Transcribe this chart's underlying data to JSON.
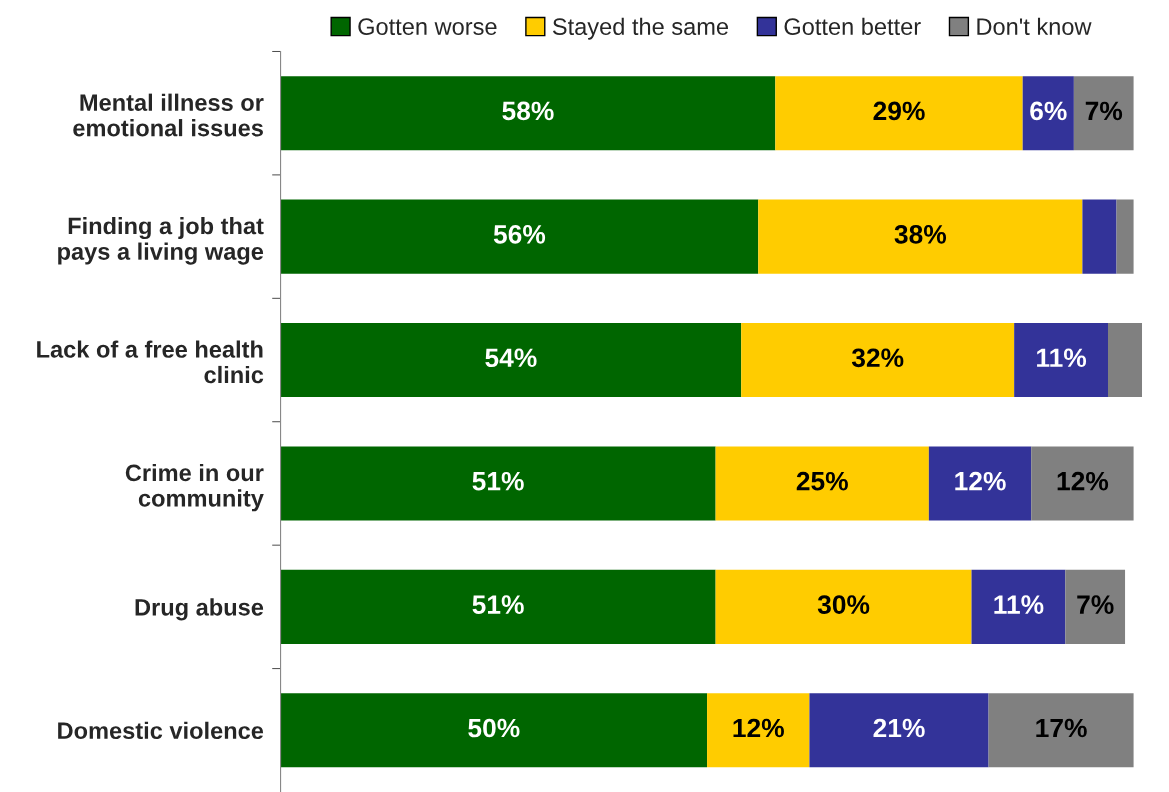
{
  "chart_data": {
    "type": "bar",
    "orientation": "horizontal",
    "stacked": true,
    "legend": "top",
    "categories": [
      "Mental illness or\nemotional issues",
      "Finding a job that\npays a living wage",
      "Lack of a free health\nclinic",
      "Crime in our\ncommunity",
      "Drug abuse",
      "Domestic violence"
    ],
    "series": [
      {
        "name": "Gotten worse",
        "color": "#006600",
        "values": [
          58,
          56,
          54,
          51,
          51,
          50
        ],
        "value_labels": [
          "58%",
          "56%",
          "54%",
          "51%",
          "51%",
          "50%"
        ]
      },
      {
        "name": "Stayed the same",
        "color": "#ffcc00",
        "values": [
          29,
          38,
          32,
          25,
          30,
          12
        ],
        "value_labels": [
          "29%",
          "38%",
          "32%",
          "25%",
          "30%",
          "12%"
        ]
      },
      {
        "name": "Gotten better",
        "color": "#333399",
        "values": [
          6,
          4,
          11,
          12,
          11,
          21
        ],
        "value_labels": [
          "6%",
          null,
          "11%",
          "12%",
          "11%",
          "21%"
        ]
      },
      {
        "name": "Don't know",
        "color": "#808080",
        "values": [
          7,
          2,
          4,
          12,
          7,
          17
        ],
        "value_labels": [
          "7%",
          null,
          null,
          "12%",
          "7%",
          "17%"
        ]
      }
    ]
  }
}
